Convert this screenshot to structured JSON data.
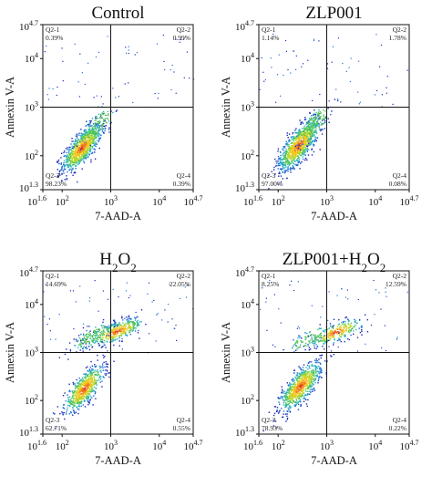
{
  "chart_data": [
    {
      "type": "scatter",
      "title": "Control",
      "xlabel": "7-AAD-A",
      "ylabel": "Annexin V-A",
      "x_scale": "log",
      "y_scale": "log",
      "xlim": [
        40,
        50000
      ],
      "ylim": [
        20,
        50000
      ],
      "quadrant_gate": {
        "x": 1000,
        "y": 1000
      },
      "quadrants": [
        {
          "id": "Q2-1",
          "pct": "0.39%"
        },
        {
          "id": "Q2-2",
          "pct": "0.99%"
        },
        {
          "id": "Q2-3",
          "pct": "98.23%"
        },
        {
          "id": "Q2-4",
          "pct": "0.39%"
        }
      ],
      "populations": [
        {
          "center": [
            250,
            150
          ],
          "spread": [
            0.2,
            0.24
          ],
          "count": 900
        },
        {
          "center": [
            500,
            420
          ],
          "spread": [
            0.18,
            0.2
          ],
          "count": 120
        }
      ]
    },
    {
      "type": "scatter",
      "title": "ZLP001",
      "xlabel": "7-AAD-A",
      "ylabel": "Annexin V-A",
      "x_scale": "log",
      "y_scale": "log",
      "xlim": [
        40,
        50000
      ],
      "ylim": [
        20,
        50000
      ],
      "quadrant_gate": {
        "x": 1000,
        "y": 1000
      },
      "quadrants": [
        {
          "id": "Q2-1",
          "pct": "1.14%"
        },
        {
          "id": "Q2-2",
          "pct": "1.78%"
        },
        {
          "id": "Q2-3",
          "pct": "97.00%"
        },
        {
          "id": "Q2-4",
          "pct": "0.08%"
        }
      ],
      "populations": [
        {
          "center": [
            260,
            170
          ],
          "spread": [
            0.21,
            0.26
          ],
          "count": 950
        },
        {
          "center": [
            520,
            450
          ],
          "spread": [
            0.18,
            0.2
          ],
          "count": 140
        }
      ]
    },
    {
      "type": "scatter",
      "title": "H₂O₂",
      "xlabel": "7-AAD-A",
      "ylabel": "Annexin V-A",
      "x_scale": "log",
      "y_scale": "log",
      "xlim": [
        40,
        50000
      ],
      "ylim": [
        20,
        50000
      ],
      "quadrant_gate": {
        "x": 1000,
        "y": 1000
      },
      "quadrants": [
        {
          "id": "Q2-1",
          "pct": "14.69%"
        },
        {
          "id": "Q2-2",
          "pct": "22.05%"
        },
        {
          "id": "Q2-3",
          "pct": "62.71%"
        },
        {
          "id": "Q2-4",
          "pct": "0.55%"
        }
      ],
      "populations": [
        {
          "center": [
            280,
            180
          ],
          "spread": [
            0.2,
            0.24
          ],
          "count": 650
        },
        {
          "center": [
            1300,
            2800
          ],
          "spread": [
            0.28,
            0.14
          ],
          "count": 380
        },
        {
          "center": [
            400,
            2200
          ],
          "spread": [
            0.2,
            0.14
          ],
          "count": 140
        }
      ]
    },
    {
      "type": "scatter",
      "title": "ZLP001+H₂O₂",
      "xlabel": "7-AAD-A",
      "ylabel": "Annexin V-A",
      "x_scale": "log",
      "y_scale": "log",
      "xlim": [
        40,
        50000
      ],
      "ylim": [
        20,
        50000
      ],
      "quadrant_gate": {
        "x": 1000,
        "y": 1000
      },
      "quadrants": [
        {
          "id": "Q2-1",
          "pct": "8.25%"
        },
        {
          "id": "Q2-2",
          "pct": "12.59%"
        },
        {
          "id": "Q2-3",
          "pct": "78.93%"
        },
        {
          "id": "Q2-4",
          "pct": "0.22%"
        }
      ],
      "populations": [
        {
          "center": [
            280,
            200
          ],
          "spread": [
            0.21,
            0.25
          ],
          "count": 800
        },
        {
          "center": [
            1500,
            2700
          ],
          "spread": [
            0.28,
            0.14
          ],
          "count": 280
        },
        {
          "center": [
            420,
            2000
          ],
          "spread": [
            0.2,
            0.13
          ],
          "count": 80
        }
      ]
    }
  ],
  "colors": {
    "density": [
      "#1a2ab8",
      "#1e6fd6",
      "#28b0c4",
      "#4cc45a",
      "#b8d62a",
      "#f0c81e",
      "#f08020",
      "#e02a18"
    ],
    "gate_line": "#111111",
    "axes": "#111111"
  },
  "x_ticks": [
    {
      "value": 40,
      "base": "10",
      "exp": "1.6"
    },
    {
      "value": 100,
      "base": "10",
      "exp": "2"
    },
    {
      "value": 1000,
      "base": "10",
      "exp": "3"
    },
    {
      "value": 10000,
      "base": "10",
      "exp": "4"
    },
    {
      "value": 50000,
      "base": "10",
      "exp": "4.7"
    }
  ],
  "y_ticks": [
    {
      "value": 20,
      "base": "10",
      "exp": "1.3"
    },
    {
      "value": 100,
      "base": "10",
      "exp": "2"
    },
    {
      "value": 1000,
      "base": "10",
      "exp": "3"
    },
    {
      "value": 10000,
      "base": "10",
      "exp": "4"
    },
    {
      "value": 50000,
      "base": "10",
      "exp": "4.7"
    }
  ]
}
